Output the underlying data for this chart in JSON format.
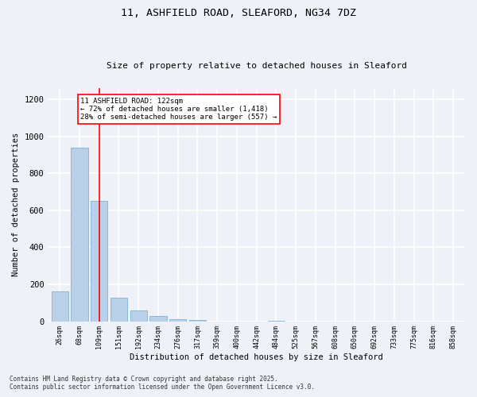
{
  "title1": "11, ASHFIELD ROAD, SLEAFORD, NG34 7DZ",
  "title2": "Size of property relative to detached houses in Sleaford",
  "xlabel": "Distribution of detached houses by size in Sleaford",
  "ylabel": "Number of detached properties",
  "bar_labels": [
    "26sqm",
    "68sqm",
    "109sqm",
    "151sqm",
    "192sqm",
    "234sqm",
    "276sqm",
    "317sqm",
    "359sqm",
    "400sqm",
    "442sqm",
    "484sqm",
    "525sqm",
    "567sqm",
    "608sqm",
    "650sqm",
    "692sqm",
    "733sqm",
    "775sqm",
    "816sqm",
    "858sqm"
  ],
  "bar_values": [
    160,
    940,
    650,
    125,
    58,
    28,
    13,
    5,
    0,
    0,
    0,
    3,
    0,
    0,
    0,
    0,
    0,
    0,
    0,
    0,
    0
  ],
  "bar_color": "#b8d0e8",
  "bar_edgecolor": "#6aaad4",
  "vline_x_index": 2,
  "annotation_box_text": "11 ASHFIELD ROAD: 122sqm\n← 72% of detached houses are smaller (1,418)\n28% of semi-detached houses are larger (557) →",
  "ylim": [
    0,
    1260
  ],
  "yticks": [
    0,
    200,
    400,
    600,
    800,
    1000,
    1200
  ],
  "background_color": "#eef2f8",
  "grid_color": "#ffffff",
  "footer1": "Contains HM Land Registry data © Crown copyright and database right 2025.",
  "footer2": "Contains public sector information licensed under the Open Government Licence v3.0."
}
